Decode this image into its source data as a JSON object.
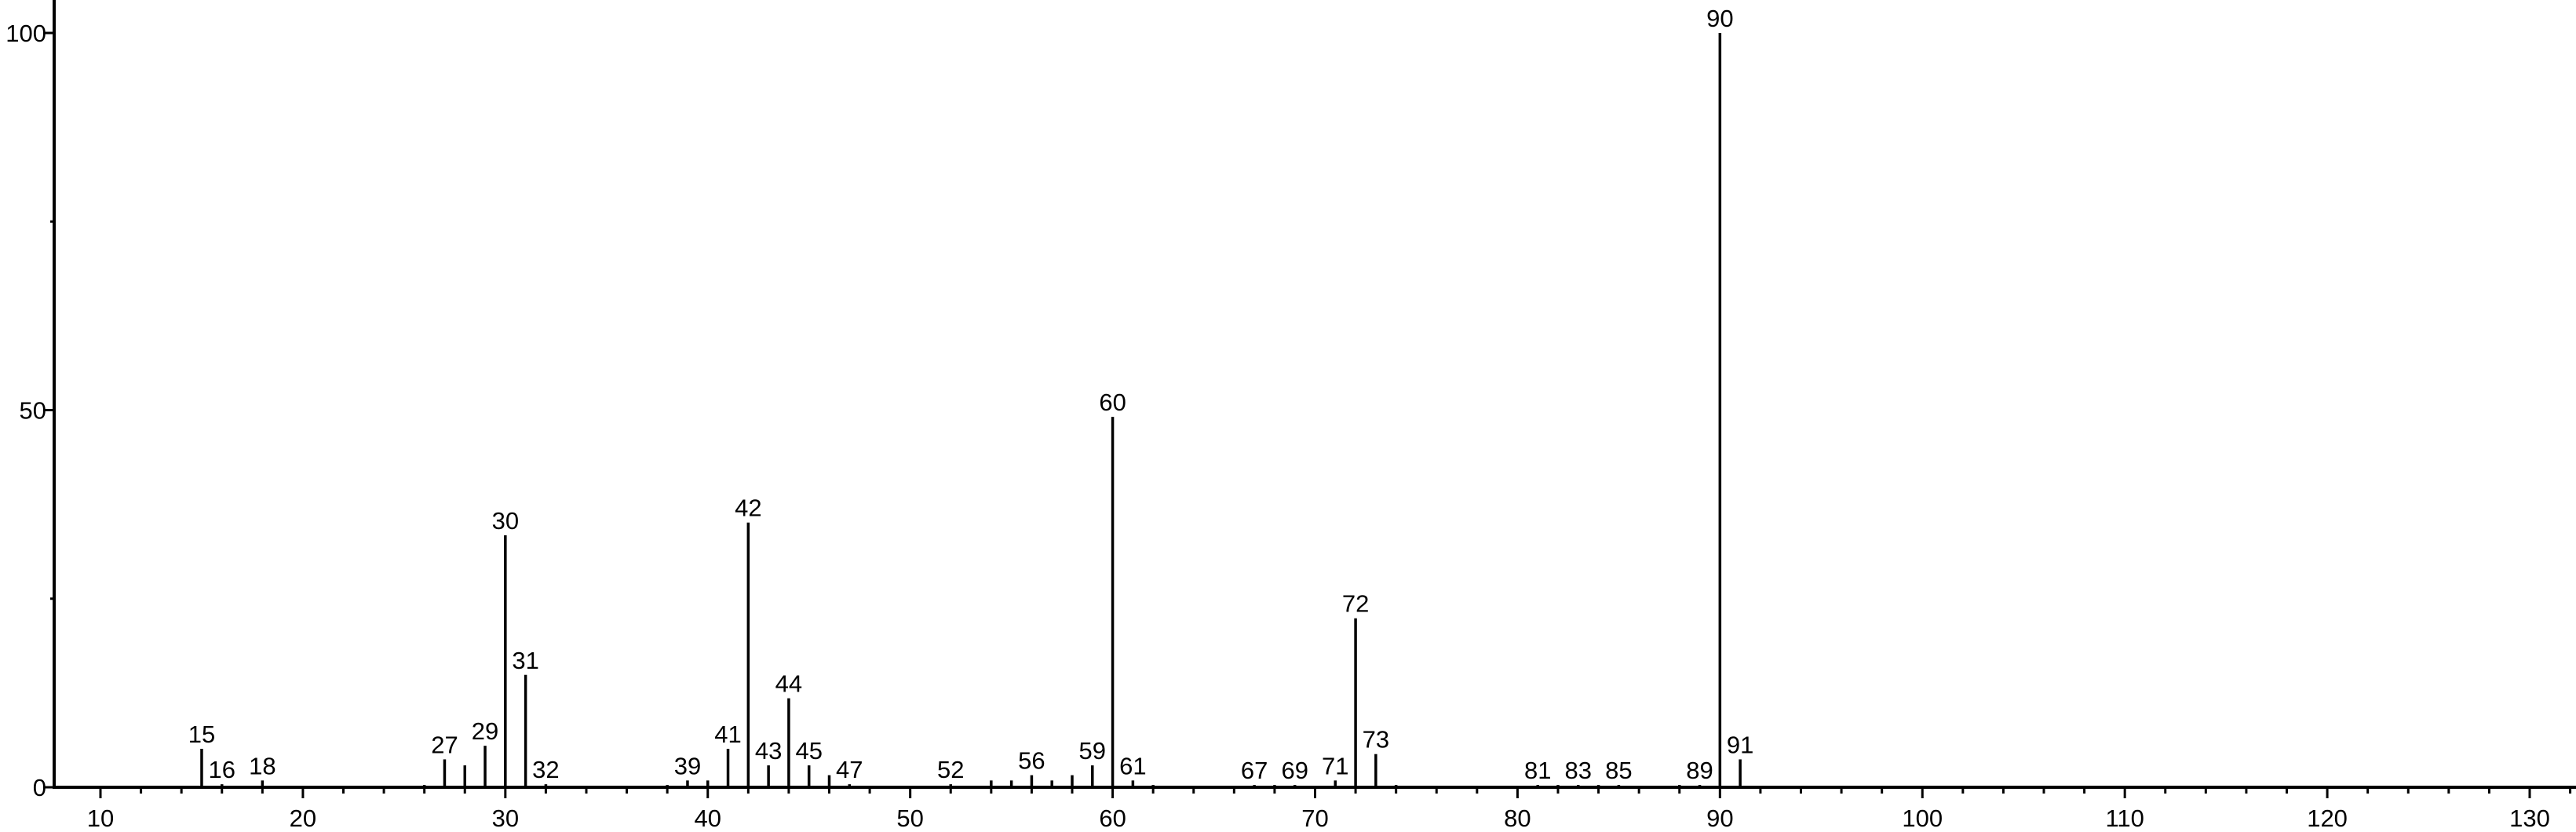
{
  "chart_data": {
    "type": "bar",
    "style": "stick spectrum",
    "title": "",
    "xlabel": "",
    "ylabel": "",
    "xlim": [
      8,
      132
    ],
    "ylim": [
      0,
      100
    ],
    "x_ticks": [
      10,
      20,
      30,
      40,
      50,
      60,
      70,
      80,
      90,
      100,
      110,
      120,
      130
    ],
    "y_ticks": [
      0,
      50,
      100
    ],
    "grid": false,
    "color": "#000000",
    "peaks": [
      {
        "x": 15,
        "y": 5.1,
        "label": "15"
      },
      {
        "x": 16,
        "y": 0.4,
        "label": "16"
      },
      {
        "x": 17,
        "y": 0.2
      },
      {
        "x": 18,
        "y": 0.9,
        "label": "18"
      },
      {
        "x": 26,
        "y": 0.3
      },
      {
        "x": 27,
        "y": 3.7,
        "label": "27"
      },
      {
        "x": 28,
        "y": 2.9
      },
      {
        "x": 29,
        "y": 5.5,
        "label": "29"
      },
      {
        "x": 30,
        "y": 33.4,
        "label": "30"
      },
      {
        "x": 31,
        "y": 14.9,
        "label": "31"
      },
      {
        "x": 32,
        "y": 0.4,
        "label": "32"
      },
      {
        "x": 38,
        "y": 0.3
      },
      {
        "x": 39,
        "y": 0.9,
        "label": "39"
      },
      {
        "x": 40,
        "y": 0.9
      },
      {
        "x": 41,
        "y": 5.1,
        "label": "41"
      },
      {
        "x": 42,
        "y": 35.1,
        "label": "42"
      },
      {
        "x": 43,
        "y": 2.9,
        "label": "43"
      },
      {
        "x": 44,
        "y": 11.8,
        "label": "44"
      },
      {
        "x": 45,
        "y": 2.9,
        "label": "45"
      },
      {
        "x": 46,
        "y": 1.6
      },
      {
        "x": 47,
        "y": 0.4,
        "label": "47"
      },
      {
        "x": 52,
        "y": 0.4,
        "label": "52"
      },
      {
        "x": 53,
        "y": 0.2
      },
      {
        "x": 54,
        "y": 0.9
      },
      {
        "x": 55,
        "y": 0.9
      },
      {
        "x": 56,
        "y": 1.6,
        "label": "56"
      },
      {
        "x": 57,
        "y": 0.9
      },
      {
        "x": 58,
        "y": 1.6
      },
      {
        "x": 59,
        "y": 2.9,
        "label": "59"
      },
      {
        "x": 60,
        "y": 49.1,
        "label": "60"
      },
      {
        "x": 61,
        "y": 0.9,
        "label": "61"
      },
      {
        "x": 62,
        "y": 0.3
      },
      {
        "x": 67,
        "y": 0.3,
        "label": "67"
      },
      {
        "x": 68,
        "y": 0.3
      },
      {
        "x": 69,
        "y": 0.3,
        "label": "69"
      },
      {
        "x": 71,
        "y": 0.9,
        "label": "71"
      },
      {
        "x": 72,
        "y": 22.4,
        "label": "72"
      },
      {
        "x": 73,
        "y": 4.4,
        "label": "73"
      },
      {
        "x": 74,
        "y": 0.3
      },
      {
        "x": 81,
        "y": 0.3,
        "label": "81"
      },
      {
        "x": 82,
        "y": 0.3
      },
      {
        "x": 83,
        "y": 0.3,
        "label": "83"
      },
      {
        "x": 84,
        "y": 0.3
      },
      {
        "x": 85,
        "y": 0.3,
        "label": "85"
      },
      {
        "x": 88,
        "y": 0.3
      },
      {
        "x": 89,
        "y": 0.3,
        "label": "89"
      },
      {
        "x": 90,
        "y": 100,
        "label": "90"
      },
      {
        "x": 91,
        "y": 3.7,
        "label": "91"
      },
      {
        "x": 92,
        "y": 0.2
      }
    ]
  }
}
